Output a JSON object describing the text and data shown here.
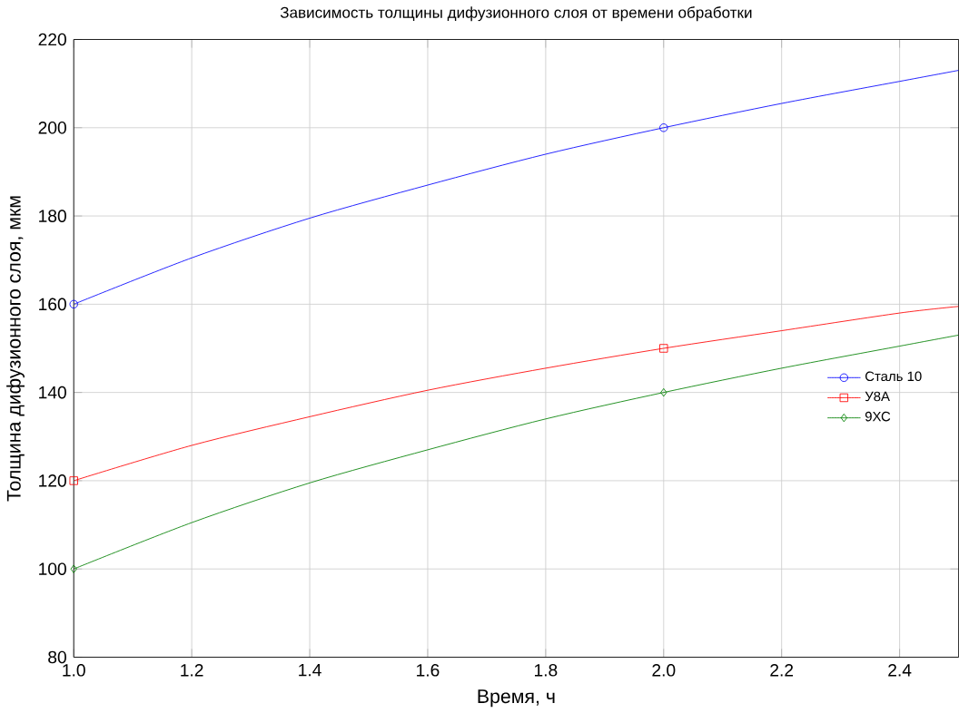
{
  "chart_data": {
    "type": "line",
    "title": "Зависимость толщины дифузионного слоя от времени обработки",
    "xlabel": "Время, ч",
    "ylabel": "Толщина дифузионного слоя, мкм",
    "xlim": [
      1.0,
      2.5
    ],
    "ylim": [
      80,
      220
    ],
    "xticks": [
      {
        "value": 1.0,
        "label": "1.0"
      },
      1.2,
      1.4,
      1.6,
      1.8,
      {
        "value": 2.0,
        "label": "2.0"
      },
      2.2,
      2.4
    ],
    "yticks": [
      80,
      100,
      120,
      140,
      160,
      180,
      200,
      220
    ],
    "grid": true,
    "legend": "right",
    "series": [
      {
        "name": "Сталь 10",
        "color": "#0000ff",
        "x": [
          1.0,
          1.2,
          1.4,
          1.6,
          1.8,
          2.0,
          2.2,
          2.4,
          2.5
        ],
        "values": [
          160,
          170.5,
          179.5,
          187,
          194,
          200,
          205.5,
          210.5,
          213
        ]
      },
      {
        "name": "У8А",
        "color": "#ff0000",
        "x": [
          1.0,
          1.2,
          1.4,
          1.6,
          1.8,
          2.0,
          2.2,
          2.4,
          2.5
        ],
        "values": [
          120,
          128,
          134.5,
          140.5,
          145.5,
          150,
          154,
          158,
          159.5
        ]
      },
      {
        "name": "9ХС",
        "color": "#008000",
        "x": [
          1.0,
          1.2,
          1.4,
          1.6,
          1.8,
          2.0,
          2.2,
          2.4,
          2.5
        ],
        "values": [
          100,
          110.5,
          119.5,
          127,
          134,
          140,
          145.5,
          150.5,
          153
        ]
      },
      {
        "type": "scatter",
        "color": "#0000ff",
        "marker": "circle",
        "x": [
          1.0,
          2.0
        ],
        "values": [
          160,
          200
        ]
      },
      {
        "type": "scatter",
        "color": "#ff0000",
        "marker": "square",
        "x": [
          1.0,
          2.0
        ],
        "values": [
          120,
          150
        ]
      },
      {
        "type": "scatter",
        "color": "#008000",
        "marker": "diamond",
        "x": [
          1.0,
          2.0
        ],
        "values": [
          100,
          140
        ]
      }
    ]
  }
}
